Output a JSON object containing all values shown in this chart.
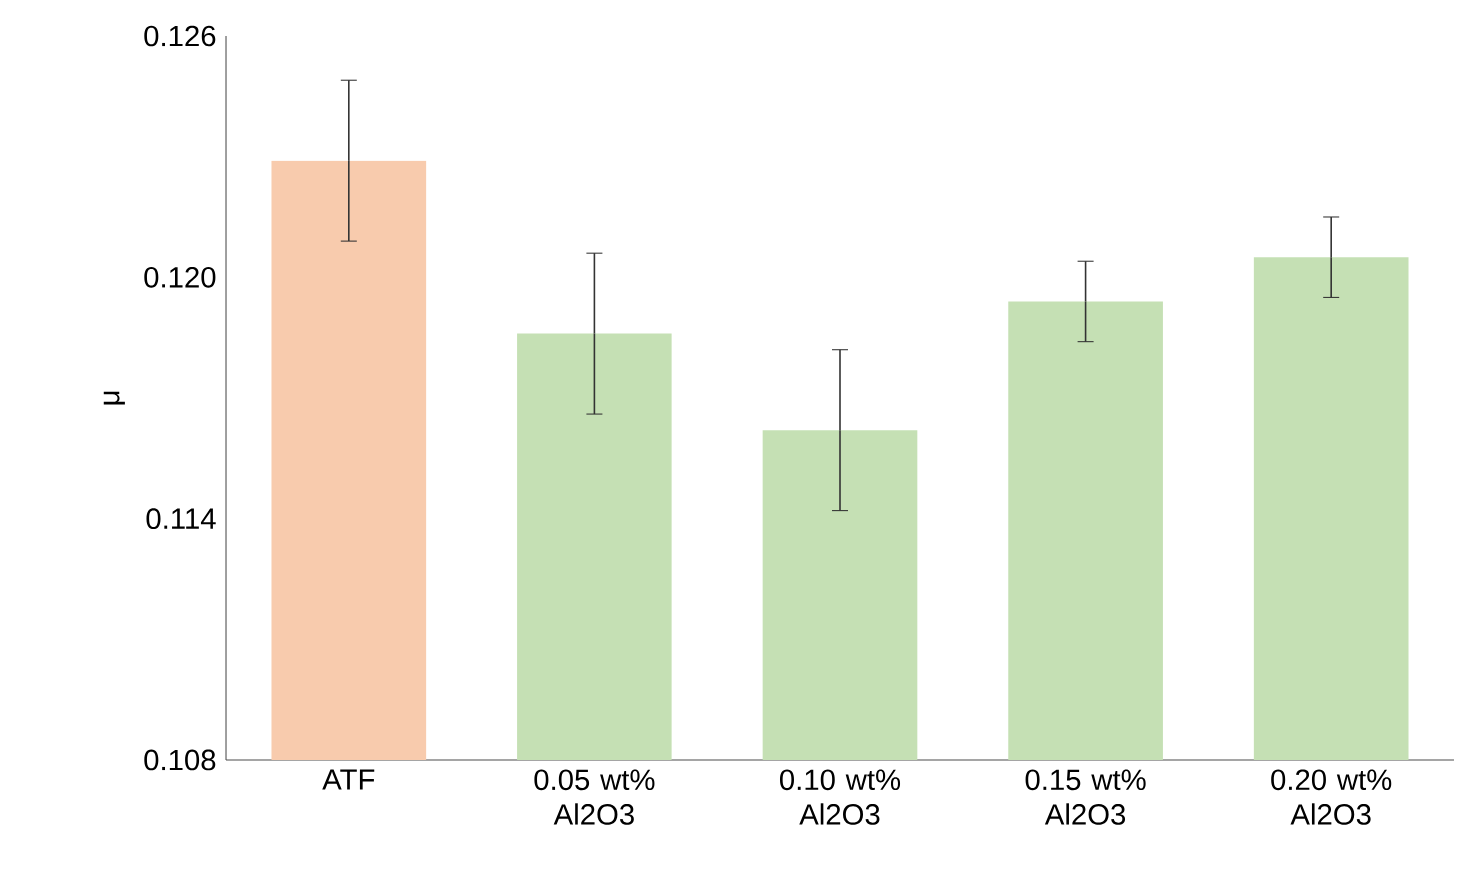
{
  "chart_data": {
    "type": "bar",
    "ylabel": "μ",
    "categories": [
      "ATF",
      "0.05 wt% Al2O3",
      "0.10 wt% Al2O3",
      "0.15 wt% Al2O3",
      "0.20 wt% Al2O3"
    ],
    "values": [
      0.1229,
      0.1186,
      0.1162,
      0.1194,
      0.1205
    ],
    "errors": [
      0.002,
      0.002,
      0.002,
      0.001,
      0.001
    ],
    "colors": [
      "#f8cbad",
      "#c5e0b4",
      "#c5e0b4",
      "#c5e0b4",
      "#c5e0b4"
    ],
    "ylim": [
      0.108,
      0.126
    ],
    "yticks": [
      0.108,
      0.114,
      {
        "value": 0.12,
        "label": "0.120"
      },
      0.126
    ]
  }
}
